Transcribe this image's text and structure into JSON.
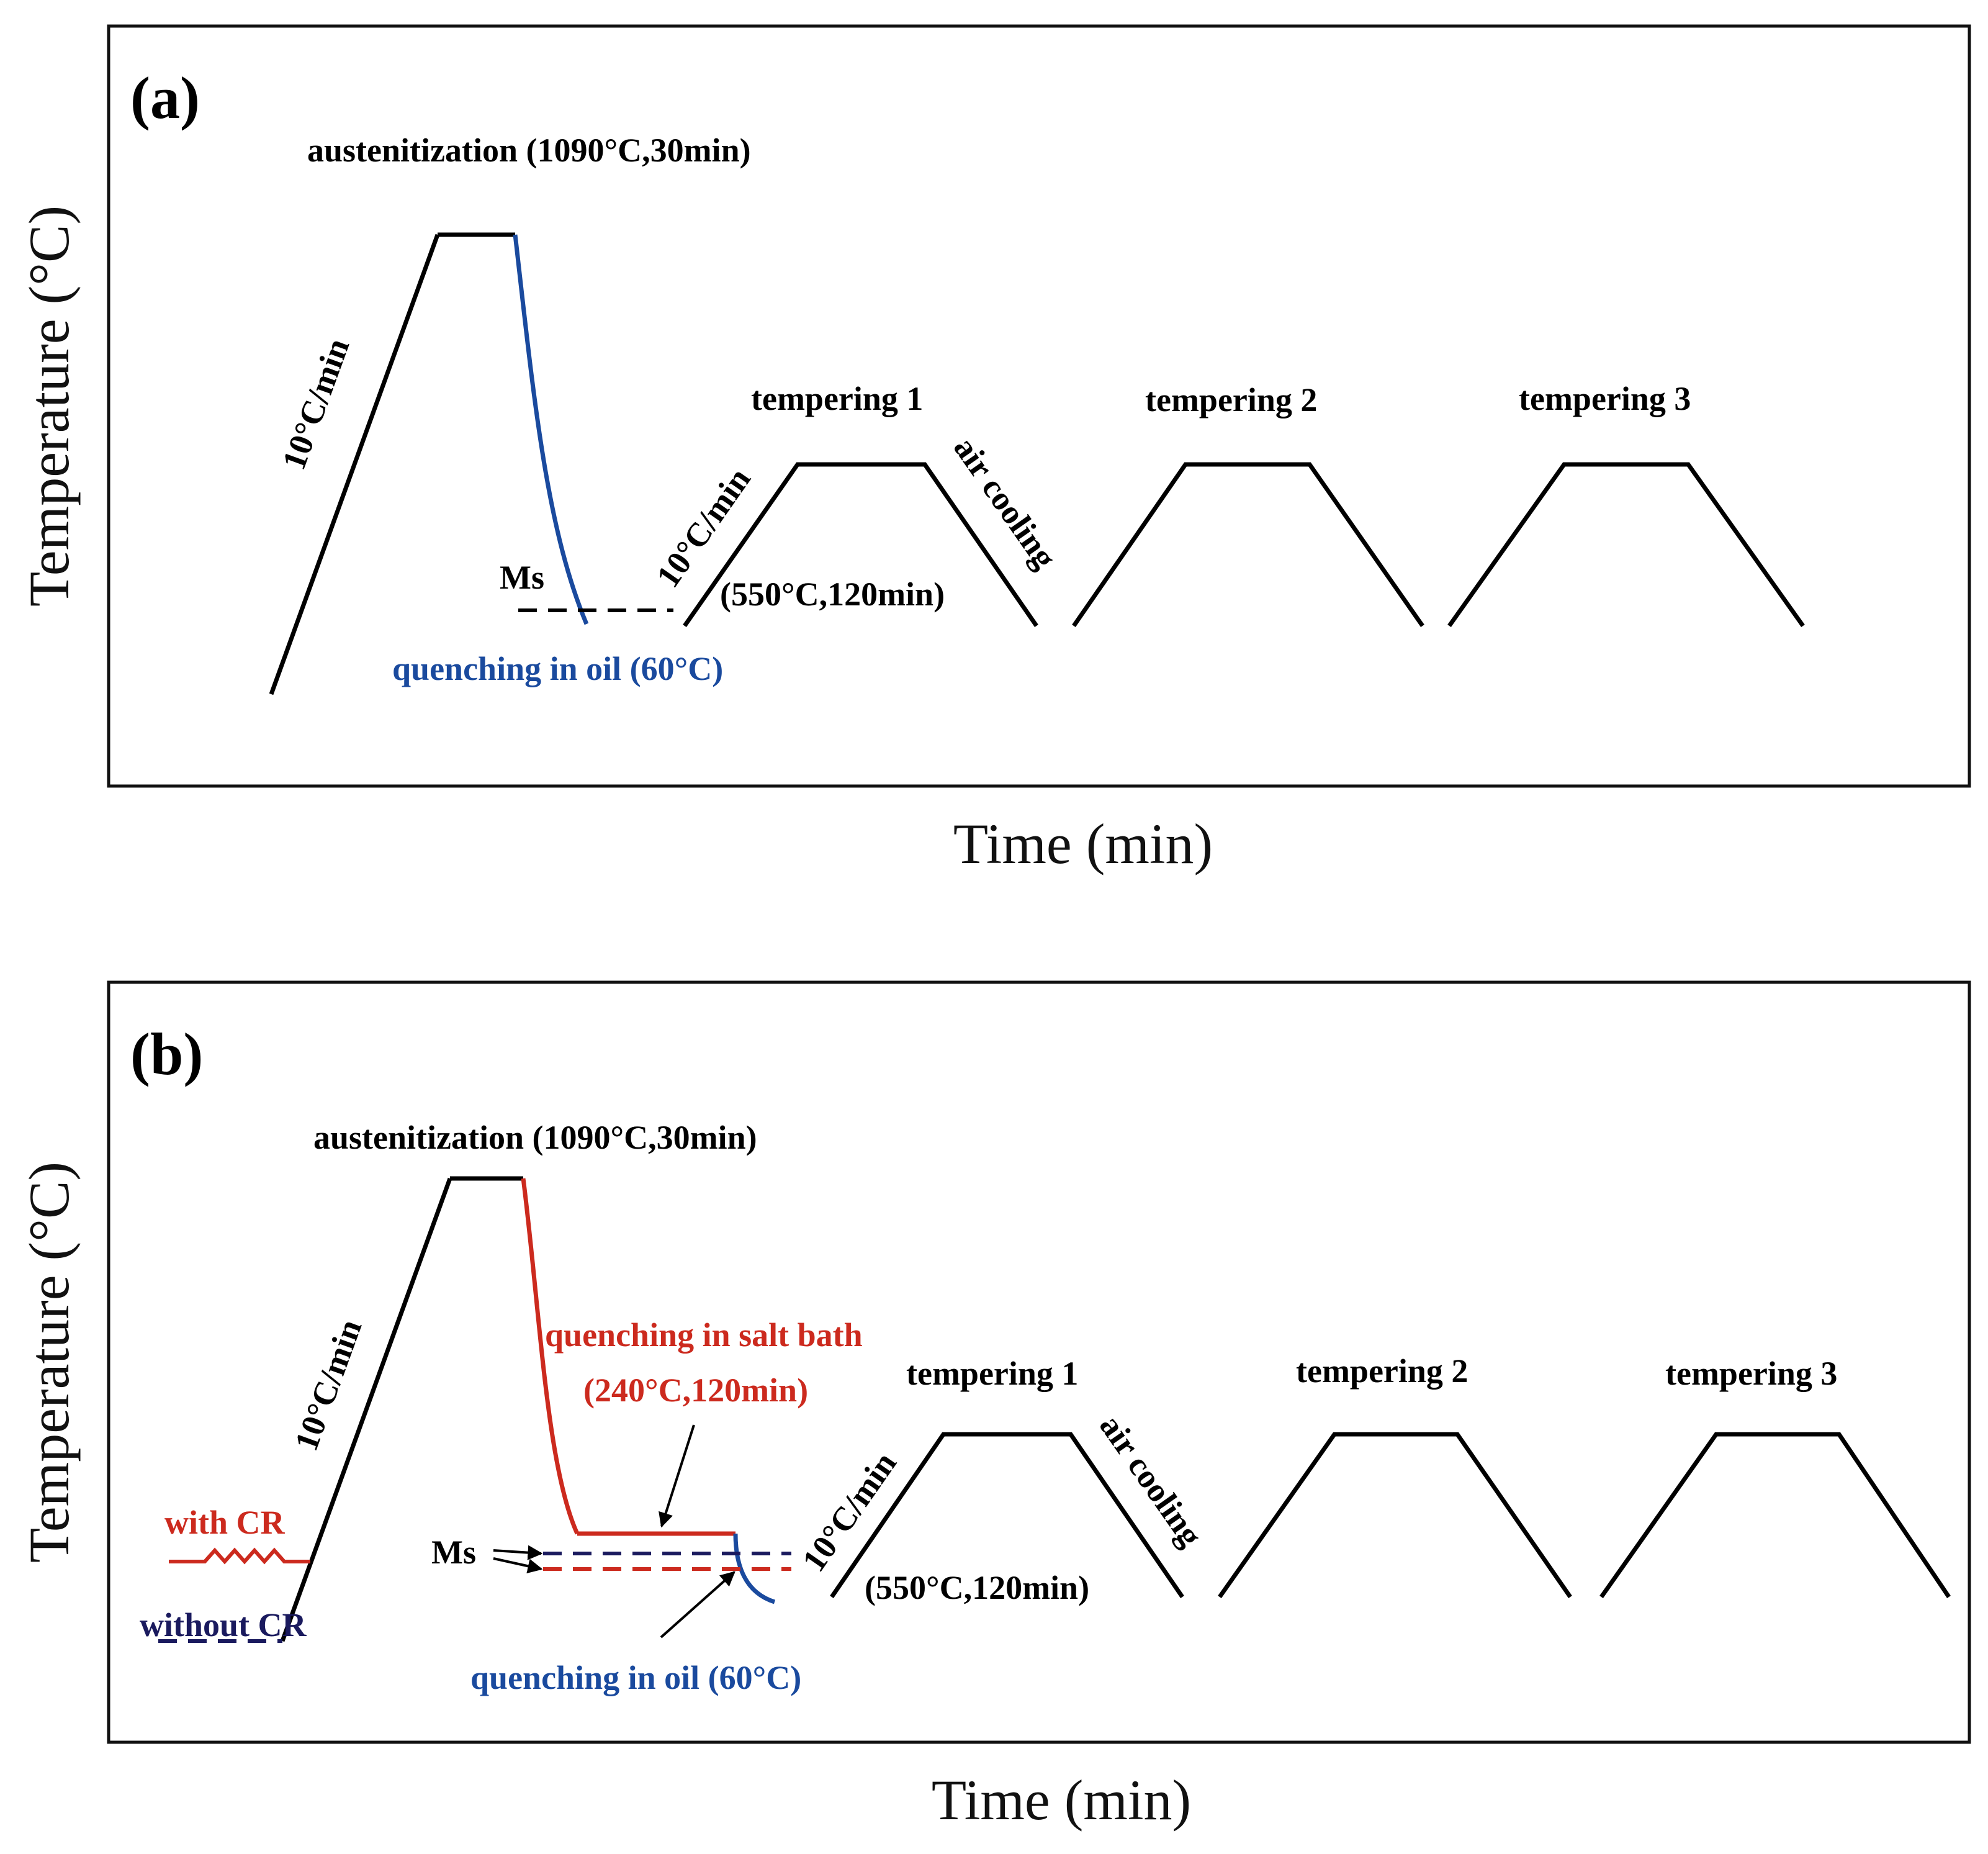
{
  "colors": {
    "black": "#000000",
    "oil_blue": "#1a4a9e",
    "salt_red": "#cc2a1e",
    "navy": "#1a1a5e",
    "background": "#ffffff"
  },
  "panel_a": {
    "label": "(a)",
    "austenitization": "austenitization (1090°C,30min)",
    "heating_rate": "10°C/min",
    "ms": "Ms",
    "quench": "quenching in oil (60°C)",
    "temper_rate": "10°C/min",
    "temper_cond": "(550°C,120min)",
    "air_cooling": "air cooling",
    "tempering": [
      "tempering 1",
      "tempering 2",
      "tempering 3"
    ],
    "y_axis": "Temperature (°C)",
    "x_axis": "Time (min)"
  },
  "panel_b": {
    "label": "(b)",
    "austenitization": "austenitization (1090°C,30min)",
    "heating_rate": "10°C/min",
    "salt_quench": "quenching in salt bath",
    "salt_cond": "(240°C,120min)",
    "with_cr": "with CR",
    "without_cr": "without CR",
    "ms": "Ms",
    "oil_quench": "quenching in oil (60°C)",
    "temper_rate": "10°C/min",
    "temper_cond": "(550°C,120min)",
    "air_cooling": "air cooling",
    "tempering": [
      "tempering 1",
      "tempering 2",
      "tempering 3"
    ],
    "y_axis": "Temperature (°C)",
    "x_axis": "Time (min)"
  }
}
